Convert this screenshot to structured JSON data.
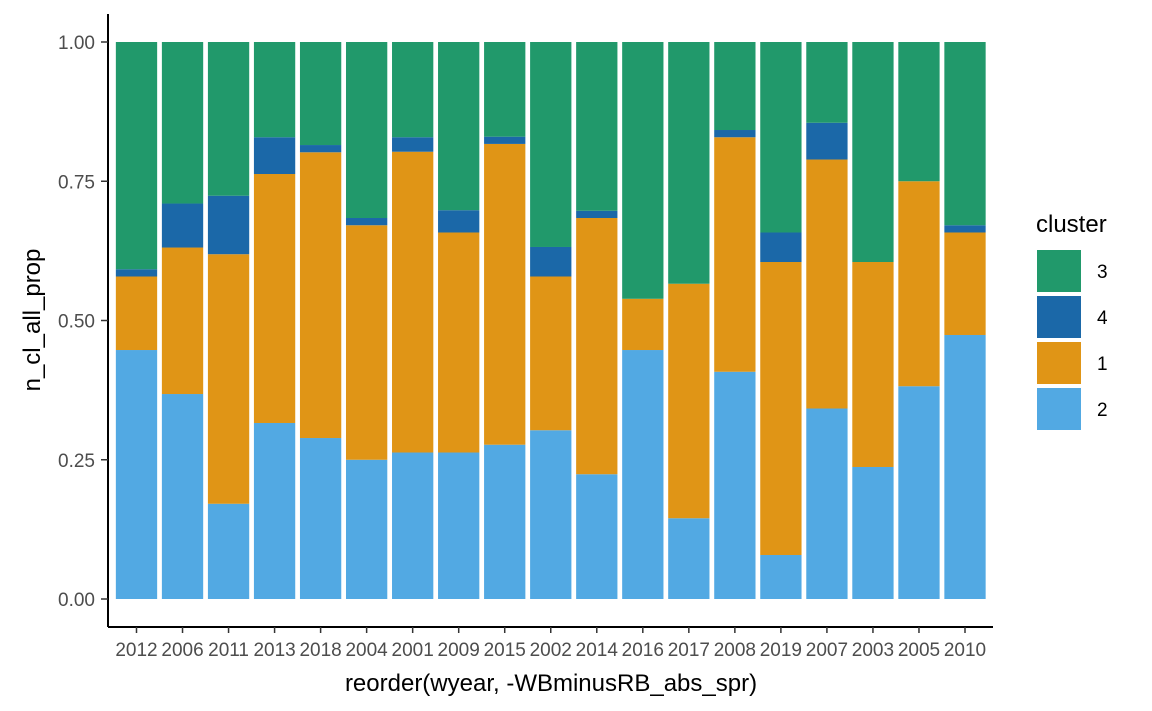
{
  "chart_data": {
    "type": "bar",
    "stacked": true,
    "xlabel": "reorder(wyear, -WBminusRB_abs_spr)",
    "ylabel": "n_cl_all_prop",
    "ylim": [
      0,
      1
    ],
    "yticks": [
      "0.00",
      "0.25",
      "0.50",
      "0.75",
      "1.00"
    ],
    "ytick_values": [
      0,
      0.25,
      0.5,
      0.75,
      1.0
    ],
    "grid": false,
    "categories": [
      "2012",
      "2006",
      "2011",
      "2013",
      "2018",
      "2004",
      "2001",
      "2009",
      "2015",
      "2002",
      "2014",
      "2016",
      "2017",
      "2008",
      "2019",
      "2007",
      "2003",
      "2005",
      "2010"
    ],
    "legend": {
      "title": "cluster",
      "position": "right",
      "entries": [
        {
          "label": "3",
          "color": "#21996B"
        },
        {
          "label": "4",
          "color": "#1B68A8"
        },
        {
          "label": "1",
          "color": "#E09516"
        },
        {
          "label": "2",
          "color": "#52A9E3"
        }
      ]
    },
    "stack_order_bottom_to_top": [
      "2",
      "1",
      "4",
      "3"
    ],
    "series": [
      {
        "name": "2",
        "color": "#52A9E3",
        "values": [
          0.447,
          0.368,
          0.171,
          0.316,
          0.289,
          0.25,
          0.263,
          0.263,
          0.277,
          0.303,
          0.224,
          0.447,
          0.145,
          0.408,
          0.079,
          0.342,
          0.237,
          0.382,
          0.474
        ]
      },
      {
        "name": "1",
        "color": "#E09516",
        "values": [
          0.132,
          0.263,
          0.448,
          0.447,
          0.513,
          0.421,
          0.54,
          0.395,
          0.54,
          0.276,
          0.46,
          0.092,
          0.421,
          0.421,
          0.526,
          0.447,
          0.368,
          0.368,
          0.184
        ]
      },
      {
        "name": "4",
        "color": "#1B68A8",
        "values": [
          0.013,
          0.079,
          0.105,
          0.066,
          0.013,
          0.013,
          0.026,
          0.04,
          0.013,
          0.053,
          0.013,
          0.0,
          0.0,
          0.013,
          0.053,
          0.066,
          0.0,
          0.0,
          0.013
        ]
      },
      {
        "name": "3",
        "color": "#21996B",
        "values": [
          0.408,
          0.29,
          0.276,
          0.171,
          0.185,
          0.316,
          0.171,
          0.302,
          0.17,
          0.368,
          0.303,
          0.461,
          0.434,
          0.158,
          0.342,
          0.145,
          0.395,
          0.25,
          0.329
        ]
      }
    ]
  }
}
